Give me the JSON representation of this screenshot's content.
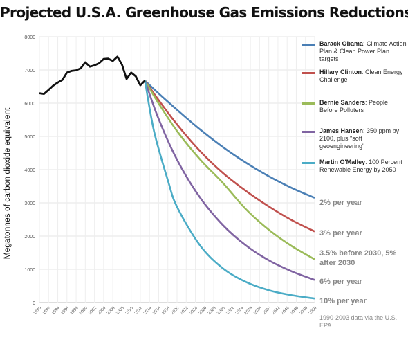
{
  "chart_data": {
    "type": "line",
    "title": "Projected U.S.A. Greenhouse Gas Emissions Reductions",
    "ylabel": "Megatonnes of carbon dioxide equivalent",
    "xlabel": "",
    "ylim": [
      0,
      8000
    ],
    "xlim": [
      1990,
      2050
    ],
    "yticks": [
      0,
      1000,
      2000,
      3000,
      4000,
      5000,
      6000,
      7000,
      8000
    ],
    "xticks": [
      "1990",
      "1992",
      "1994",
      "1996",
      "1998",
      "2000",
      "2002",
      "2004",
      "2006",
      "2008",
      "2010",
      "2012",
      "2014",
      "2016",
      "2018",
      "2020",
      "2022",
      "2024",
      "2026",
      "2028",
      "2030",
      "2032",
      "2034",
      "2036",
      "2038",
      "2040",
      "2042",
      "2044",
      "2046",
      "2048",
      "2050"
    ],
    "grid": true,
    "legend_placement": "right",
    "historical": {
      "color": "#111111",
      "x": [
        1990,
        1991,
        1992,
        1993,
        1994,
        1995,
        1996,
        1997,
        1998,
        1999,
        2000,
        2001,
        2002,
        2003,
        2004,
        2005,
        2006,
        2007,
        2008,
        2009,
        2010,
        2011,
        2012,
        2013
      ],
      "values": [
        6300,
        6280,
        6400,
        6530,
        6620,
        6700,
        6920,
        6970,
        6990,
        7050,
        7230,
        7100,
        7140,
        7200,
        7330,
        7340,
        7270,
        7400,
        7160,
        6730,
        6920,
        6810,
        6540,
        6680
      ]
    },
    "series": [
      {
        "name": "Barack Obama",
        "desc": ": Climate Action Plan & Clean Power Plan targets",
        "color": "#4a7fb5",
        "rate_label": "2% per year",
        "x": [
          2013,
          2016,
          2020,
          2025,
          2030,
          2035,
          2040,
          2045,
          2050
        ],
        "values": [
          6680,
          6290,
          5800,
          5210,
          4680,
          4210,
          3800,
          3450,
          3150
        ]
      },
      {
        "name": "Hillary Clinton",
        "desc": ": Clean Energy Challenge",
        "color": "#c0504d",
        "rate_label": "3% per year",
        "x": [
          2013,
          2016,
          2020,
          2025,
          2030,
          2035,
          2040,
          2045,
          2050
        ],
        "values": [
          6680,
          6090,
          5360,
          4560,
          3900,
          3360,
          2890,
          2480,
          2140
        ]
      },
      {
        "name": "Bernie Sanders",
        "desc": ": People Before Polluters",
        "color": "#9bbb59",
        "rate_label": "3.5% before 2030, 5% after 2030",
        "x": [
          2013,
          2016,
          2020,
          2025,
          2030,
          2035,
          2040,
          2045,
          2050
        ],
        "values": [
          6680,
          5990,
          5160,
          4310,
          3600,
          2810,
          2190,
          1700,
          1300
        ]
      },
      {
        "name": "James Hansen",
        "desc": ": 350 ppm by 2100, plus \"soft geoengineering\"",
        "color": "#8064a2",
        "rate_label": "6% per year",
        "x": [
          2013,
          2016,
          2020,
          2025,
          2030,
          2035,
          2040,
          2045,
          2050
        ],
        "values": [
          6680,
          5520,
          4300,
          3160,
          2330,
          1720,
          1270,
          940,
          680
        ]
      },
      {
        "name": "Martin O'Malley",
        "desc": ": 100 Percent Renewable Energy by 2050",
        "color": "#4bacc6",
        "rate_label": "10% per year",
        "x": [
          2013,
          2015,
          2018,
          2020,
          2025,
          2030,
          2035,
          2040,
          2045,
          2050
        ],
        "values": [
          6680,
          5150,
          3680,
          2880,
          1720,
          1030,
          620,
          370,
          220,
          120
        ]
      }
    ],
    "source_note": "1990-2003 data via the U.S. EPA"
  }
}
